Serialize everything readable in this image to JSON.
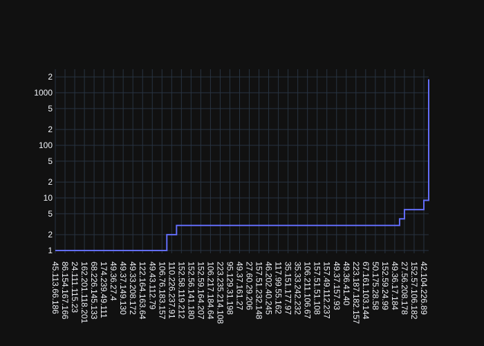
{
  "chart_data": {
    "type": "line",
    "line_shape": "hv",
    "log_y": true,
    "grid": true,
    "color": "#636efa",
    "categories": [
      "45.113.66.186",
      null,
      "86.154.167.166",
      null,
      "24.111.115.23",
      null,
      "162.201.118.201",
      null,
      "68.226.145.133",
      null,
      "174.239.49.111",
      null,
      "49.36.27.4",
      null,
      "49.37.149.130",
      null,
      "49.33.208.172",
      null,
      "122.164.163.64",
      null,
      "49.43.112.79",
      null,
      "106.76.183.157",
      null,
      "110.226.237.91",
      null,
      "152.58.119.212",
      null,
      "152.56.141.180",
      null,
      "152.59.164.207",
      null,
      "106.217.184.64",
      null,
      "223.235.214.108",
      null,
      "95.129.31.198",
      null,
      "49.37.161.27",
      null,
      "27.60.29.206",
      null,
      "157.51.232.148",
      null,
      "46.202.40.245",
      null,
      "117.99.55.162",
      null,
      "35.151.177.97",
      null,
      "35.33.242.232",
      null,
      "106.211.106.67",
      null,
      "157.51.51.108",
      null,
      "157.49.112.237",
      null,
      "49.37.157.93",
      null,
      "49.36.41.40",
      null,
      "223.187.182.157",
      null,
      "67.161.103.144",
      null,
      "50.175.28.58",
      null,
      "152.59.24.99",
      null,
      "49.36.17.184",
      null,
      "27.56.208.178",
      null,
      "152.57.106.182",
      null,
      "42.104.226.89",
      null
    ],
    "values": [
      1,
      1,
      1,
      1,
      1,
      1,
      1,
      1,
      1,
      1,
      1,
      1,
      1,
      1,
      1,
      1,
      1,
      1,
      1,
      1,
      1,
      1,
      1,
      2,
      2,
      3,
      3,
      3,
      3,
      3,
      3,
      3,
      3,
      3,
      3,
      3,
      3,
      3,
      3,
      3,
      3,
      3,
      3,
      3,
      3,
      3,
      3,
      3,
      3,
      3,
      3,
      3,
      3,
      3,
      3,
      3,
      3,
      3,
      3,
      3,
      3,
      3,
      3,
      3,
      3,
      3,
      3,
      3,
      3,
      3,
      3,
      4,
      6,
      6,
      6,
      6,
      9,
      1800
    ],
    "ylim": [
      0.886,
      2800
    ],
    "yticks": [
      1,
      2,
      5,
      10,
      {
        "value": 20,
        "label": "2"
      },
      {
        "value": 50,
        "label": "5"
      },
      100,
      {
        "value": 200,
        "label": "2"
      },
      {
        "value": 500,
        "label": "5"
      },
      1000,
      {
        "value": 2000,
        "label": "2"
      }
    ]
  }
}
